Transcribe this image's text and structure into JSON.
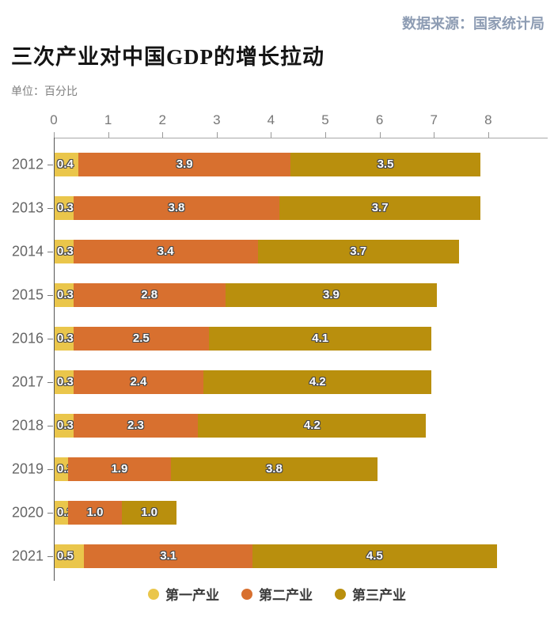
{
  "header": {
    "source": "数据来源：国家统计局",
    "title": "三次产业对中国GDP的增长拉动",
    "unit_label": "单位：百分比"
  },
  "chart_data": {
    "type": "bar",
    "orientation": "horizontal",
    "stacked": true,
    "title": "三次产业对中国GDP的增长拉动",
    "unit": "百分比",
    "categories": [
      "2012",
      "2013",
      "2014",
      "2015",
      "2016",
      "2017",
      "2018",
      "2019",
      "2020",
      "2021"
    ],
    "series": [
      {
        "name": "第一产业",
        "color": "#EAC64B",
        "values": [
          0.4,
          0.3,
          0.3,
          0.3,
          0.3,
          0.3,
          0.3,
          0.2,
          0.2,
          0.5
        ]
      },
      {
        "name": "第二产业",
        "color": "#D8702F",
        "values": [
          3.9,
          3.8,
          3.4,
          2.8,
          2.5,
          2.4,
          2.3,
          1.9,
          1.0,
          3.1
        ]
      },
      {
        "name": "第三产业",
        "color": "#B98F0D",
        "values": [
          3.5,
          3.7,
          3.7,
          3.9,
          4.1,
          4.2,
          4.2,
          3.8,
          1.0,
          4.5
        ]
      }
    ],
    "totals": [
      7.8,
      7.8,
      7.4,
      7.0,
      6.9,
      6.9,
      6.8,
      5.9,
      2.2,
      8.1
    ],
    "xlim": [
      0,
      8
    ],
    "x_ticks": [
      0,
      1,
      2,
      3,
      4,
      5,
      6,
      7,
      8
    ],
    "value_label_color": "#ffffff",
    "value_label_outline": "#4a4a4a",
    "legend_position": "bottom",
    "grid": false
  }
}
